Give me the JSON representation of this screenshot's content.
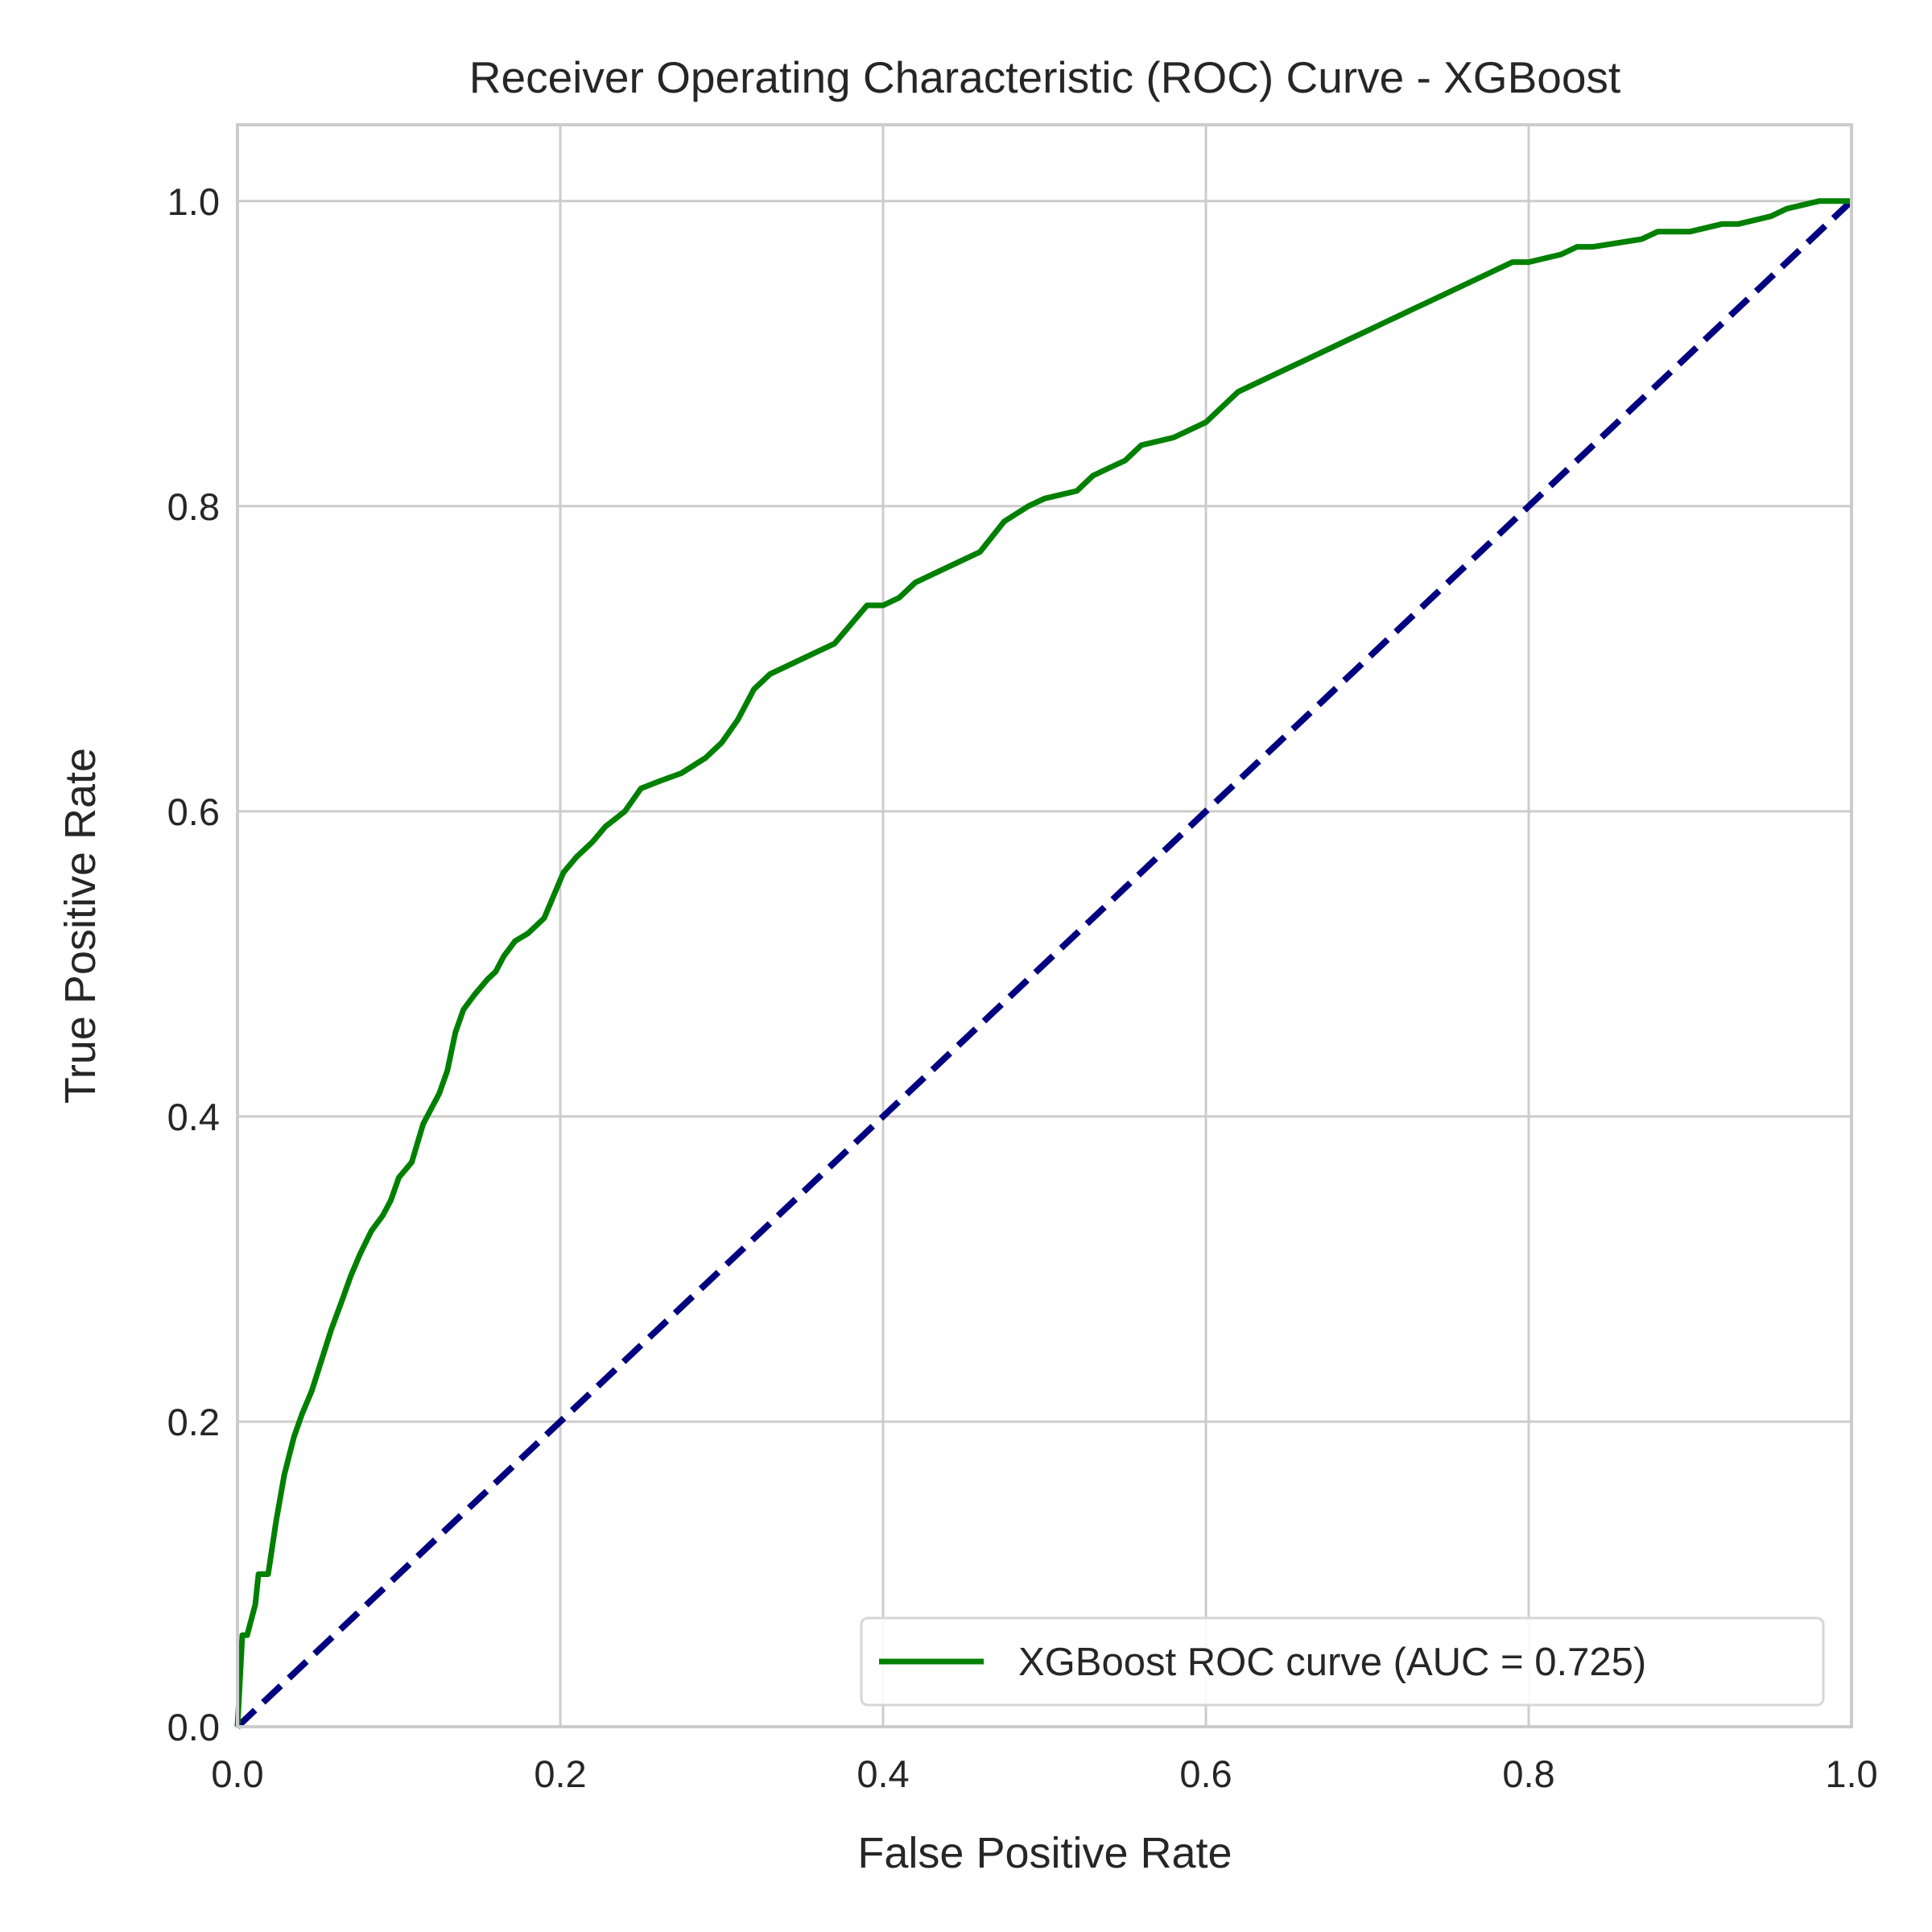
{
  "chart_data": {
    "type": "line",
    "title": "Receiver Operating Characteristic (ROC) Curve - XGBoost",
    "xlabel": "False Positive Rate",
    "ylabel": "True Positive Rate",
    "xlim": [
      0.0,
      1.0
    ],
    "ylim": [
      0.0,
      1.05
    ],
    "xticks": [
      0.0,
      0.2,
      0.4,
      0.6,
      0.8,
      1.0
    ],
    "yticks": [
      0.0,
      0.2,
      0.4,
      0.6,
      0.8,
      1.0
    ],
    "xtick_labels": [
      "0.0",
      "0.2",
      "0.4",
      "0.6",
      "0.8",
      "1.0"
    ],
    "ytick_labels": [
      "0.0",
      "0.2",
      "0.4",
      "0.6",
      "0.8",
      "1.0"
    ],
    "grid": true,
    "legend_position": "lower right",
    "series": [
      {
        "name": "XGBoost ROC curve (AUC = 0.725)",
        "color": "#008000",
        "style": "solid",
        "x": [
          0.0,
          0.003,
          0.006,
          0.011,
          0.013,
          0.019,
          0.024,
          0.029,
          0.035,
          0.04,
          0.046,
          0.052,
          0.058,
          0.065,
          0.07,
          0.076,
          0.083,
          0.09,
          0.095,
          0.1,
          0.108,
          0.115,
          0.12,
          0.125,
          0.13,
          0.135,
          0.14,
          0.147,
          0.155,
          0.16,
          0.165,
          0.172,
          0.18,
          0.19,
          0.198,
          0.202,
          0.21,
          0.22,
          0.228,
          0.24,
          0.25,
          0.262,
          0.275,
          0.29,
          0.3,
          0.31,
          0.32,
          0.33,
          0.34,
          0.35,
          0.37,
          0.39,
          0.4,
          0.41,
          0.42,
          0.44,
          0.46,
          0.475,
          0.49,
          0.5,
          0.52,
          0.53,
          0.54,
          0.55,
          0.56,
          0.58,
          0.6,
          0.61,
          0.62,
          0.63,
          0.64,
          0.65,
          0.66,
          0.67,
          0.68,
          0.69,
          0.7,
          0.71,
          0.72,
          0.73,
          0.74,
          0.75,
          0.76,
          0.77,
          0.78,
          0.79,
          0.8,
          0.82,
          0.83,
          0.84,
          0.87,
          0.88,
          0.9,
          0.92,
          0.93,
          0.95,
          0.96,
          0.98,
          1.0
        ],
        "y": [
          0.0,
          0.06,
          0.06,
          0.08,
          0.1,
          0.1,
          0.135,
          0.165,
          0.19,
          0.205,
          0.22,
          0.24,
          0.26,
          0.28,
          0.295,
          0.31,
          0.325,
          0.335,
          0.345,
          0.36,
          0.37,
          0.395,
          0.405,
          0.415,
          0.43,
          0.455,
          0.47,
          0.48,
          0.49,
          0.495,
          0.505,
          0.515,
          0.52,
          0.53,
          0.55,
          0.56,
          0.57,
          0.58,
          0.59,
          0.6,
          0.615,
          0.62,
          0.625,
          0.635,
          0.645,
          0.66,
          0.68,
          0.69,
          0.695,
          0.7,
          0.71,
          0.735,
          0.735,
          0.74,
          0.75,
          0.76,
          0.77,
          0.79,
          0.8,
          0.805,
          0.81,
          0.82,
          0.825,
          0.83,
          0.84,
          0.845,
          0.855,
          0.865,
          0.875,
          0.88,
          0.885,
          0.89,
          0.895,
          0.9,
          0.905,
          0.91,
          0.915,
          0.92,
          0.925,
          0.93,
          0.935,
          0.94,
          0.945,
          0.95,
          0.955,
          0.96,
          0.96,
          0.965,
          0.97,
          0.97,
          0.975,
          0.98,
          0.98,
          0.985,
          0.985,
          0.99,
          0.995,
          1.0,
          1.0
        ]
      },
      {
        "name": "",
        "color": "#000080",
        "style": "dashed",
        "x": [
          0.0,
          1.0
        ],
        "y": [
          0.0,
          1.0
        ]
      }
    ]
  }
}
